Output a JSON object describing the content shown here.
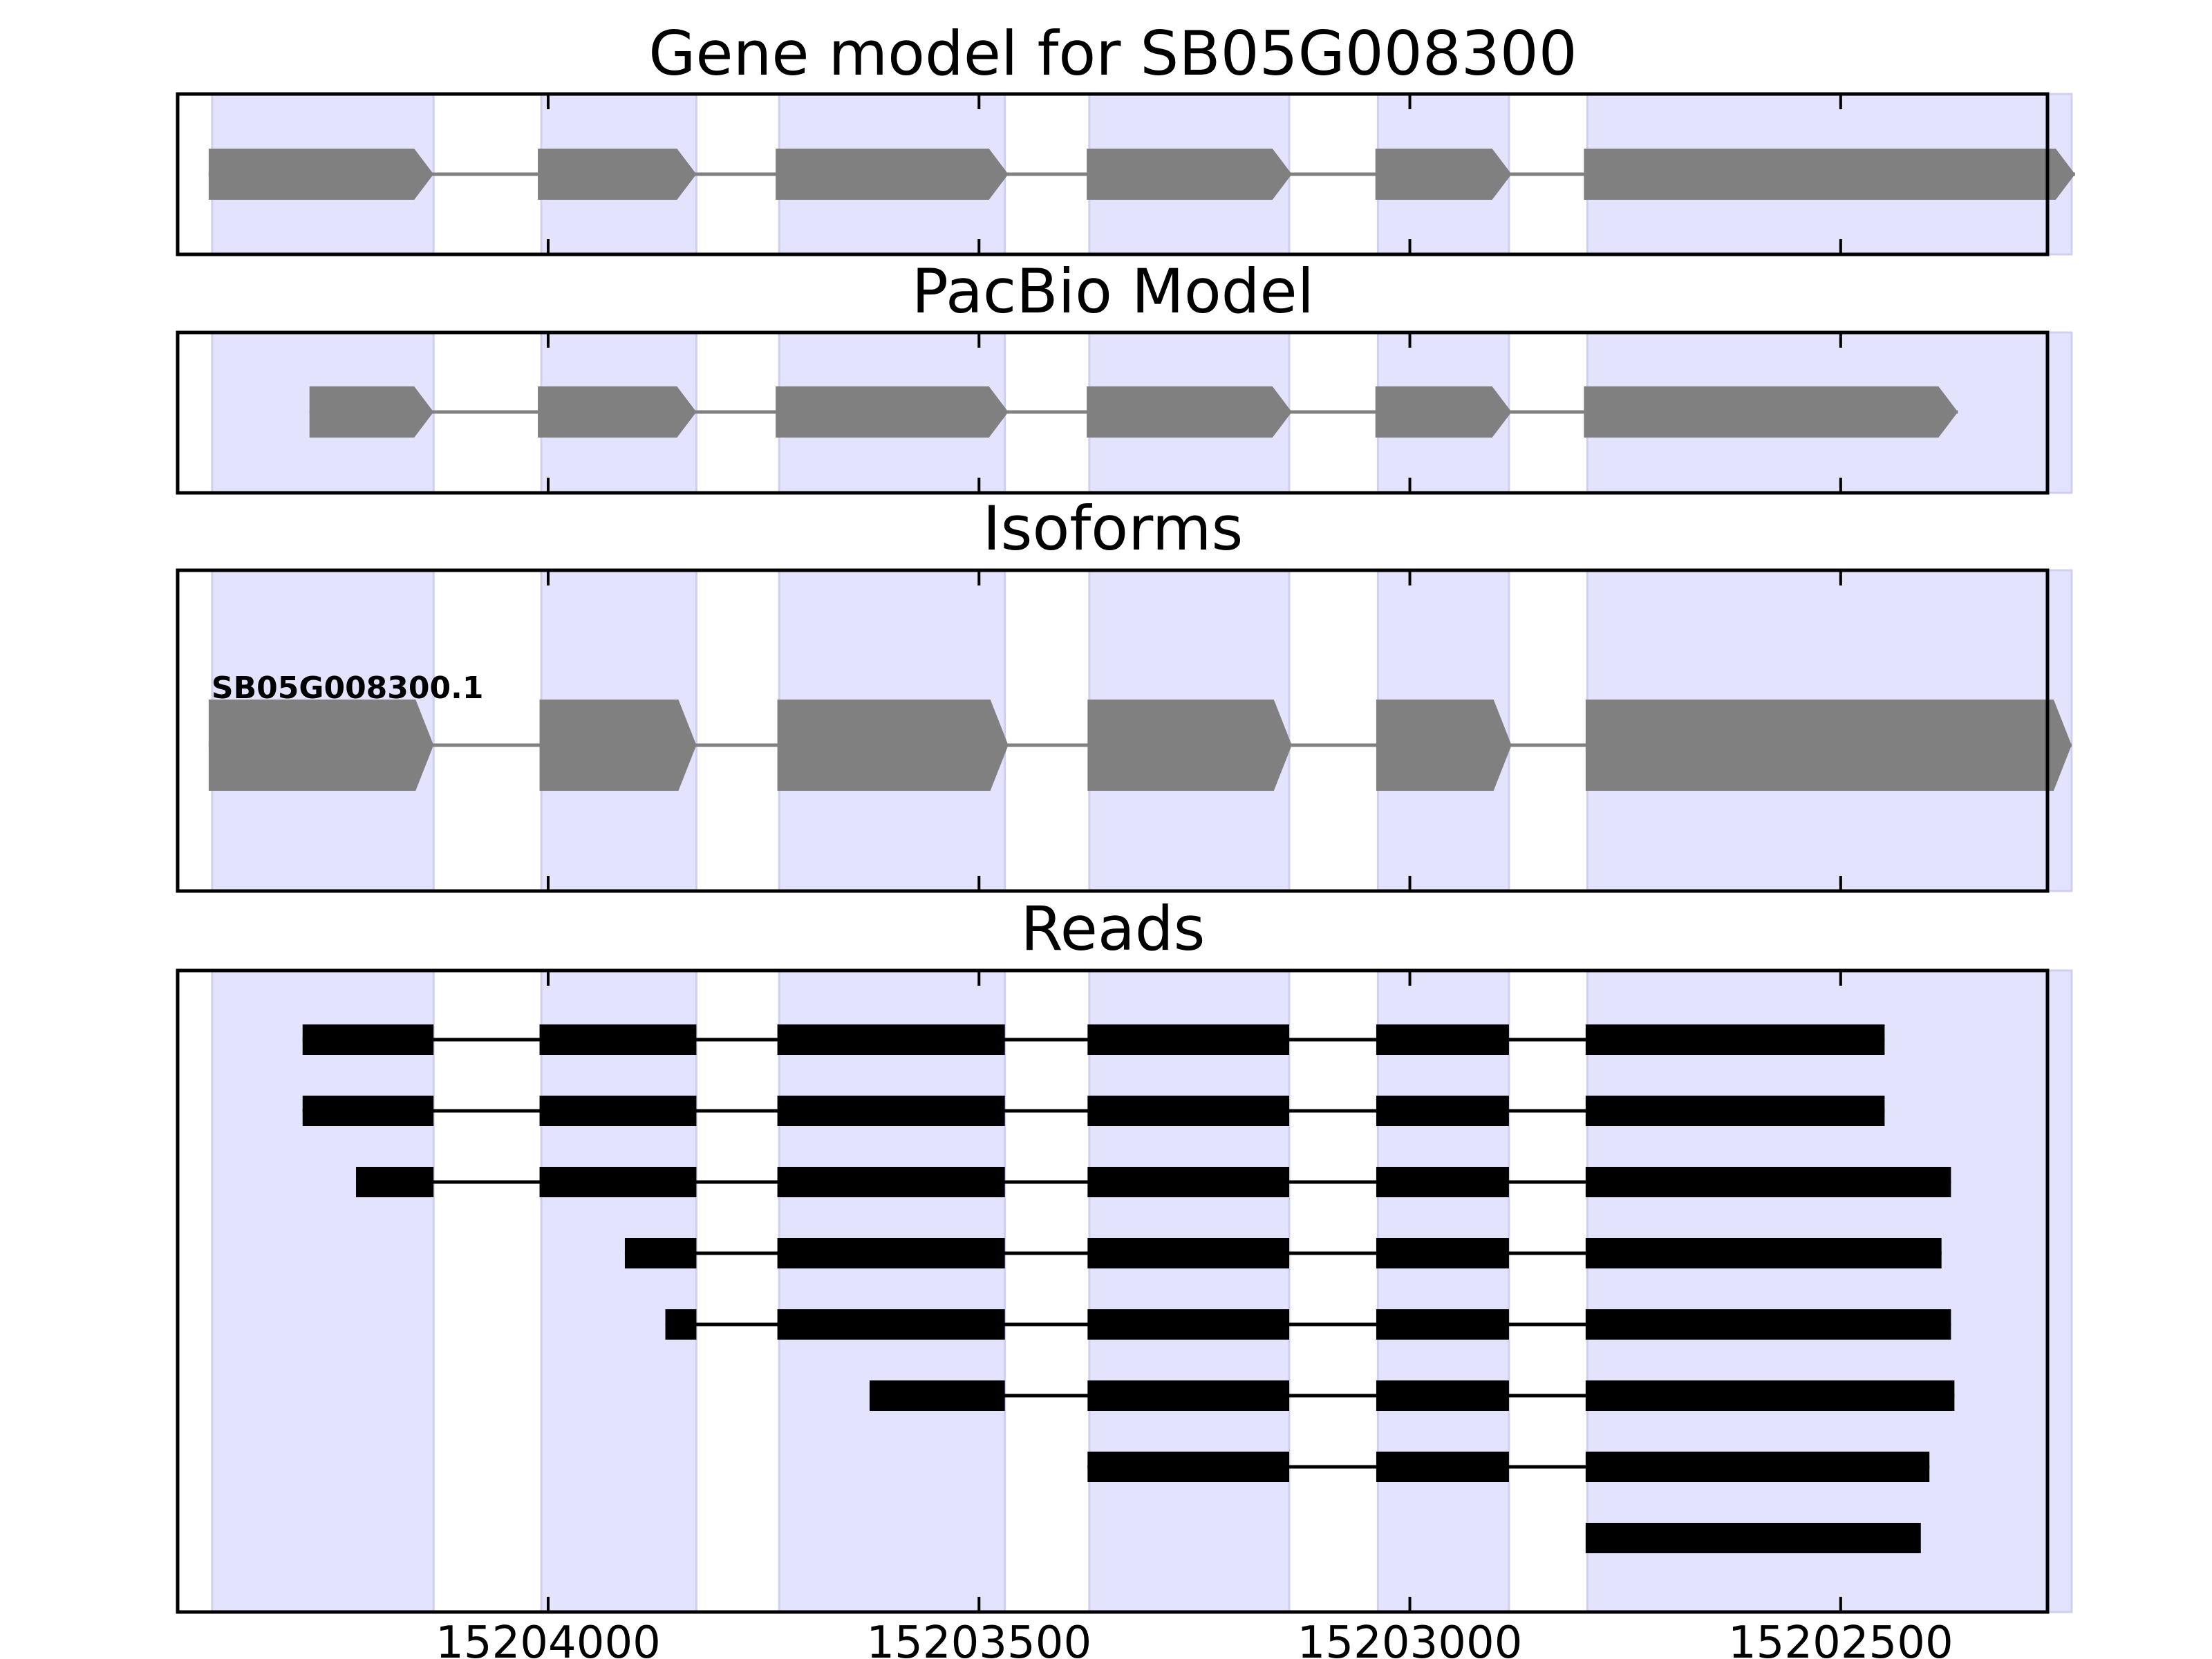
{
  "figure": {
    "genomic_range": [
      15204430,
      15202260
    ],
    "x_axis": {
      "ticks": [
        15204000,
        15203500,
        15203000,
        15202500
      ],
      "tick_labels": [
        "15204000",
        "15203500",
        "15203000",
        "15202500"
      ]
    },
    "exon_regions": [
      [
        15204390,
        15204133
      ],
      [
        15204008,
        15203828
      ],
      [
        15203732,
        15203470
      ],
      [
        15203372,
        15203140
      ],
      [
        15203037,
        15202885
      ],
      [
        15202794,
        15202232
      ]
    ],
    "colors": {
      "shade": "#e3e3fd",
      "shade_edge": "#cfcff2",
      "gene_feature": "#808080",
      "read": "#000000",
      "frame": "#000000"
    }
  },
  "panels": [
    {
      "key": "gene",
      "title": "Gene model for SB05G008300",
      "tracks": [
        {
          "label": "",
          "exons": [
            [
              15204394,
              15204133
            ],
            [
              15204012,
              15203828
            ],
            [
              15203736,
              15203466
            ],
            [
              15203375,
              15203137
            ],
            [
              15203040,
              15202882
            ],
            [
              15202798,
              15202228
            ]
          ]
        }
      ]
    },
    {
      "key": "pacbio",
      "title": "PacBio Model",
      "tracks": [
        {
          "label": "",
          "exons": [
            [
              15204277,
              15204133
            ],
            [
              15204012,
              15203828
            ],
            [
              15203736,
              15203466
            ],
            [
              15203375,
              15203137
            ],
            [
              15203040,
              15202882
            ],
            [
              15202798,
              15202364
            ]
          ]
        }
      ]
    },
    {
      "key": "isoforms",
      "title": "Isoforms",
      "tracks": [
        {
          "label": "SB05G008300.1",
          "exons": [
            [
              15204394,
              15204133
            ],
            [
              15204010,
              15203828
            ],
            [
              15203734,
              15203466
            ],
            [
              15203374,
              15203137
            ],
            [
              15203039,
              15202882
            ],
            [
              15202796,
              15202232
            ]
          ]
        }
      ]
    },
    {
      "key": "reads",
      "title": "Reads",
      "reads": [
        [
          [
            15204285,
            15204133
          ],
          [
            15204010,
            15203828
          ],
          [
            15203734,
            15203470
          ],
          [
            15203374,
            15203140
          ],
          [
            15203039,
            15202885
          ],
          [
            15202796,
            15202449
          ]
        ],
        [
          [
            15204285,
            15204133
          ],
          [
            15204010,
            15203828
          ],
          [
            15203734,
            15203470
          ],
          [
            15203374,
            15203140
          ],
          [
            15203039,
            15202885
          ],
          [
            15202796,
            15202449
          ]
        ],
        [
          [
            15204223,
            15204133
          ],
          [
            15204010,
            15203828
          ],
          [
            15203734,
            15203470
          ],
          [
            15203374,
            15203140
          ],
          [
            15203039,
            15202885
          ],
          [
            15202796,
            15202372
          ]
        ],
        [
          [
            15203911,
            15203828
          ],
          [
            15203734,
            15203470
          ],
          [
            15203374,
            15203140
          ],
          [
            15203039,
            15202885
          ],
          [
            15202796,
            15202383
          ]
        ],
        [
          [
            15203864,
            15203828
          ],
          [
            15203734,
            15203470
          ],
          [
            15203374,
            15203140
          ],
          [
            15203039,
            15202885
          ],
          [
            15202796,
            15202372
          ]
        ],
        [
          [
            15203627,
            15203470
          ],
          [
            15203374,
            15203140
          ],
          [
            15203039,
            15202885
          ],
          [
            15202796,
            15202368
          ]
        ],
        [
          [
            15203374,
            15203140
          ],
          [
            15203039,
            15202885
          ],
          [
            15202796,
            15202397
          ]
        ],
        [
          [
            15202796,
            15202407
          ]
        ]
      ]
    }
  ]
}
